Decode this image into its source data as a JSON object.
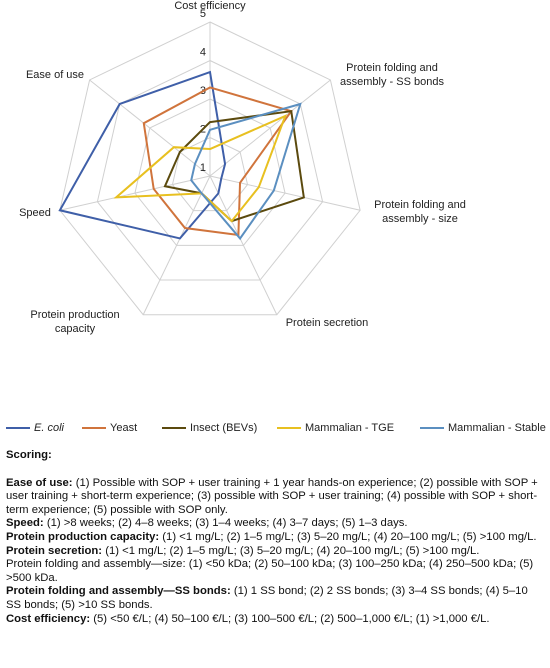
{
  "chart_data": {
    "type": "radar",
    "categories": [
      "Cost efficiency",
      "Protein folding and assembly - SS bonds",
      "Protein folding and assembly - size",
      "Protein secretion",
      "Protein production capacity",
      "Speed",
      "Ease of use"
    ],
    "ylim": [
      1,
      5
    ],
    "yticks": [
      1,
      2,
      3,
      4,
      5
    ],
    "grid": true,
    "series": [
      {
        "name": "E. coli",
        "color": "#3f5fa8",
        "values": [
          3.7,
          1.5,
          1.3,
          1.5,
          2.8,
          5,
          4
        ]
      },
      {
        "name": "Yeast",
        "color": "#d0743c",
        "values": [
          3.3,
          3.7,
          1.8,
          2.7,
          2.5,
          2.5,
          3.2
        ]
      },
      {
        "name": "Insect (BEVs)",
        "color": "#5b4a0e",
        "values": [
          2.4,
          3.7,
          3.5,
          2.3,
          1.5,
          2.2,
          2
        ]
      },
      {
        "name": "Mammalian - TGE",
        "color": "#e8c020",
        "values": [
          1.7,
          3.5,
          2.3,
          2.3,
          1.5,
          3.5,
          2.2
        ]
      },
      {
        "name": "Mammalian - Stable",
        "color": "#5b8fc0",
        "values": [
          2.2,
          4,
          2.7,
          2.8,
          1.5,
          1.5,
          1.5
        ]
      }
    ]
  },
  "scoring": {
    "title": "Scoring:",
    "items": [
      {
        "label": "Ease of use:",
        "text": "(1) Possible with SOP + user training + 1 year hands-on experience; (2) possible with SOP + user training + short-term experience; (3) possible with SOP + user training; (4) possible with SOP + short-term experience; (5) possible with SOP only."
      },
      {
        "label": "Speed:",
        "text": "(1) >8 weeks; (2) 4–8 weeks; (3) 1–4 weeks; (4) 3–7 days; (5) 1–3 days."
      },
      {
        "label": "Protein production capacity:",
        "text": "(1) <1 mg/L; (2) 1–5 mg/L; (3) 5–20 mg/L; (4) 20–100 mg/L; (5) >100 mg/L."
      },
      {
        "label": "Protein secretion:",
        "text": "(1) <1 mg/L; (2) 1–5 mg/L; (3) 5–20 mg/L; (4) 20–100 mg/L; (5) >100 mg/L."
      },
      {
        "text": "Protein folding and assembly—size: (1) <50 kDa; (2) 50–100 kDa; (3) 100–250 kDa; (4) 250–500 kDa; (5) >500 kDa."
      },
      {
        "label": "Protein folding and assembly—SS bonds:",
        "text": "(1) 1 SS bond; (2) 2 SS bonds; (3) 3–4 SS bonds; (4) 5–10 SS bonds; (5) >10 SS bonds."
      },
      {
        "label": "Cost efficiency:",
        "text": "(5) <50 €/L; (4) 50–100 €/L; (3) 100–500 €/L; (2) 500–1,000 €/L; (1) >1,000 €/L."
      }
    ]
  }
}
